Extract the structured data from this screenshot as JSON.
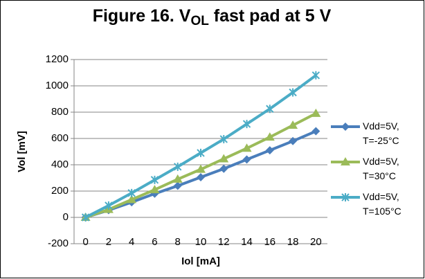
{
  "chart_data": {
    "type": "line",
    "title": [
      "Figure 16. V",
      "OL",
      " fast pad at 5 V"
    ],
    "x_label": "Iol [mA]",
    "y_label": "Vol [mV]",
    "x": [
      0,
      2,
      4,
      6,
      8,
      10,
      12,
      14,
      16,
      18,
      20
    ],
    "series": [
      {
        "name": "Vdd=5V, T=-25°C",
        "color": "#4a7ebb",
        "marker": "diamond",
        "values": [
          0,
          55,
          115,
          180,
          240,
          305,
          370,
          440,
          510,
          580,
          655
        ]
      },
      {
        "name": "Vdd=5V, T=30°C",
        "color": "#9bbb59",
        "marker": "triangle",
        "values": [
          0,
          60,
          135,
          210,
          290,
          365,
          445,
          525,
          610,
          700,
          790
        ]
      },
      {
        "name": "Vdd=5V, T=105°C",
        "color": "#4bacc6",
        "marker": "star",
        "values": [
          0,
          90,
          185,
          285,
          385,
          490,
          595,
          710,
          825,
          950,
          1080
        ]
      }
    ],
    "xlim": [
      -1,
      21
    ],
    "xticks": [
      0,
      2,
      4,
      6,
      8,
      10,
      12,
      14,
      16,
      18,
      20
    ],
    "ylim": [
      -200,
      1200
    ],
    "yticks": [
      -200,
      0,
      200,
      400,
      600,
      800,
      1000,
      1200
    ],
    "grid": true,
    "legend": "right"
  }
}
